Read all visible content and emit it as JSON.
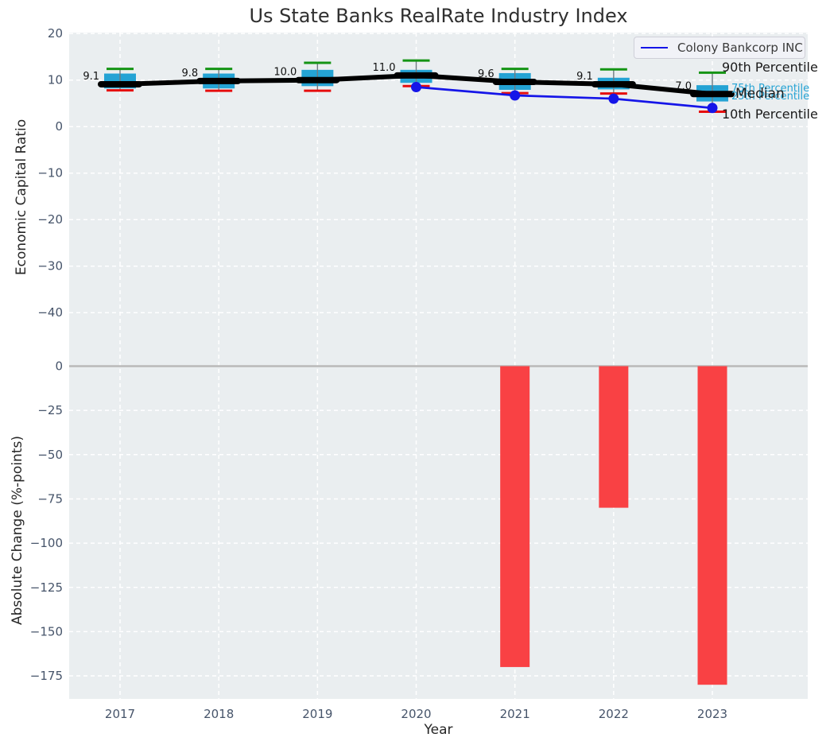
{
  "title": "Us State Banks RealRate Industry Index",
  "legend": {
    "label": "Colony Bankcorp INC"
  },
  "xlabel": "Year",
  "chart_data": {
    "type": "boxplot+line+bar",
    "years": [
      2017,
      2018,
      2019,
      2020,
      2021,
      2022,
      2023
    ],
    "top_panel": {
      "ylabel": "Economic Capital Ratio",
      "yticks": [
        20,
        10,
        0,
        -10,
        -20,
        -30,
        -40
      ],
      "ylim": [
        -50,
        20.5
      ],
      "grid": "white dashed on light gray",
      "boxplots": [
        {
          "year": 2017,
          "median": 9.1,
          "median_label": "9.1",
          "q1": 8.2,
          "q3": 11.4,
          "p10": 7.8,
          "p90": 12.4
        },
        {
          "year": 2018,
          "median": 9.8,
          "median_label": "9.8",
          "q1": 8.2,
          "q3": 11.4,
          "p10": 7.7,
          "p90": 12.4
        },
        {
          "year": 2019,
          "median": 10.0,
          "median_label": "10.0",
          "q1": 8.7,
          "q3": 12.2,
          "p10": 7.7,
          "p90": 13.7
        },
        {
          "year": 2020,
          "median": 11.0,
          "median_label": "11.0",
          "q1": 9.4,
          "q3": 12.2,
          "p10": 8.7,
          "p90": 14.2
        },
        {
          "year": 2021,
          "median": 9.6,
          "median_label": "9.6",
          "q1": 7.9,
          "q3": 11.5,
          "p10": 7.2,
          "p90": 12.4
        },
        {
          "year": 2022,
          "median": 9.1,
          "median_label": "9.1",
          "q1": 8.0,
          "q3": 10.5,
          "p10": 7.1,
          "p90": 12.3
        },
        {
          "year": 2023,
          "median": 7.0,
          "median_label": "7.0",
          "q1": 5.4,
          "q3": 8.9,
          "p10": 3.2,
          "p90": 11.6
        }
      ],
      "median_line_values": [
        9.1,
        9.8,
        10.0,
        11.0,
        9.6,
        9.1,
        7.0
      ],
      "company_series": {
        "name": "Colony Bankcorp INC",
        "years": [
          2020,
          2021,
          2022,
          2023
        ],
        "values": [
          8.5,
          6.7,
          6.0,
          4.0
        ],
        "color": "#1515e8"
      },
      "annotations": [
        {
          "id": "p90",
          "text": "90th Percentile",
          "color": "#1a1a1a"
        },
        {
          "id": "p75",
          "text": "75th Percentile",
          "color": "#24a3d4"
        },
        {
          "id": "p25",
          "text": "25th Percentile",
          "color": "#24a3d4"
        },
        {
          "id": "median",
          "text": "Median",
          "color": "#1a1a1a"
        },
        {
          "id": "p10",
          "text": "10th Percentile",
          "color": "#1a1a1a"
        }
      ],
      "colors": {
        "box_fill": "#24a3d4",
        "p90_cap": "#149414",
        "p10_cap": "#e60c0c",
        "median_line": "#000000",
        "whisker": "#6f7b82"
      }
    },
    "bottom_panel": {
      "ylabel": "Absolute Change (%-points)",
      "yticks": [
        0,
        -25,
        -50,
        -75,
        -100,
        -125,
        -150,
        -175
      ],
      "ylim": [
        -188,
        4
      ],
      "bars": [
        {
          "year": 2021,
          "value": -170
        },
        {
          "year": 2022,
          "value": -80
        },
        {
          "year": 2023,
          "value": -180
        }
      ],
      "bar_color": "#f94144",
      "zero_line_color": "#b9b9b9"
    },
    "background_color": "#eaeef0",
    "tick_label_color": "#46546a"
  }
}
